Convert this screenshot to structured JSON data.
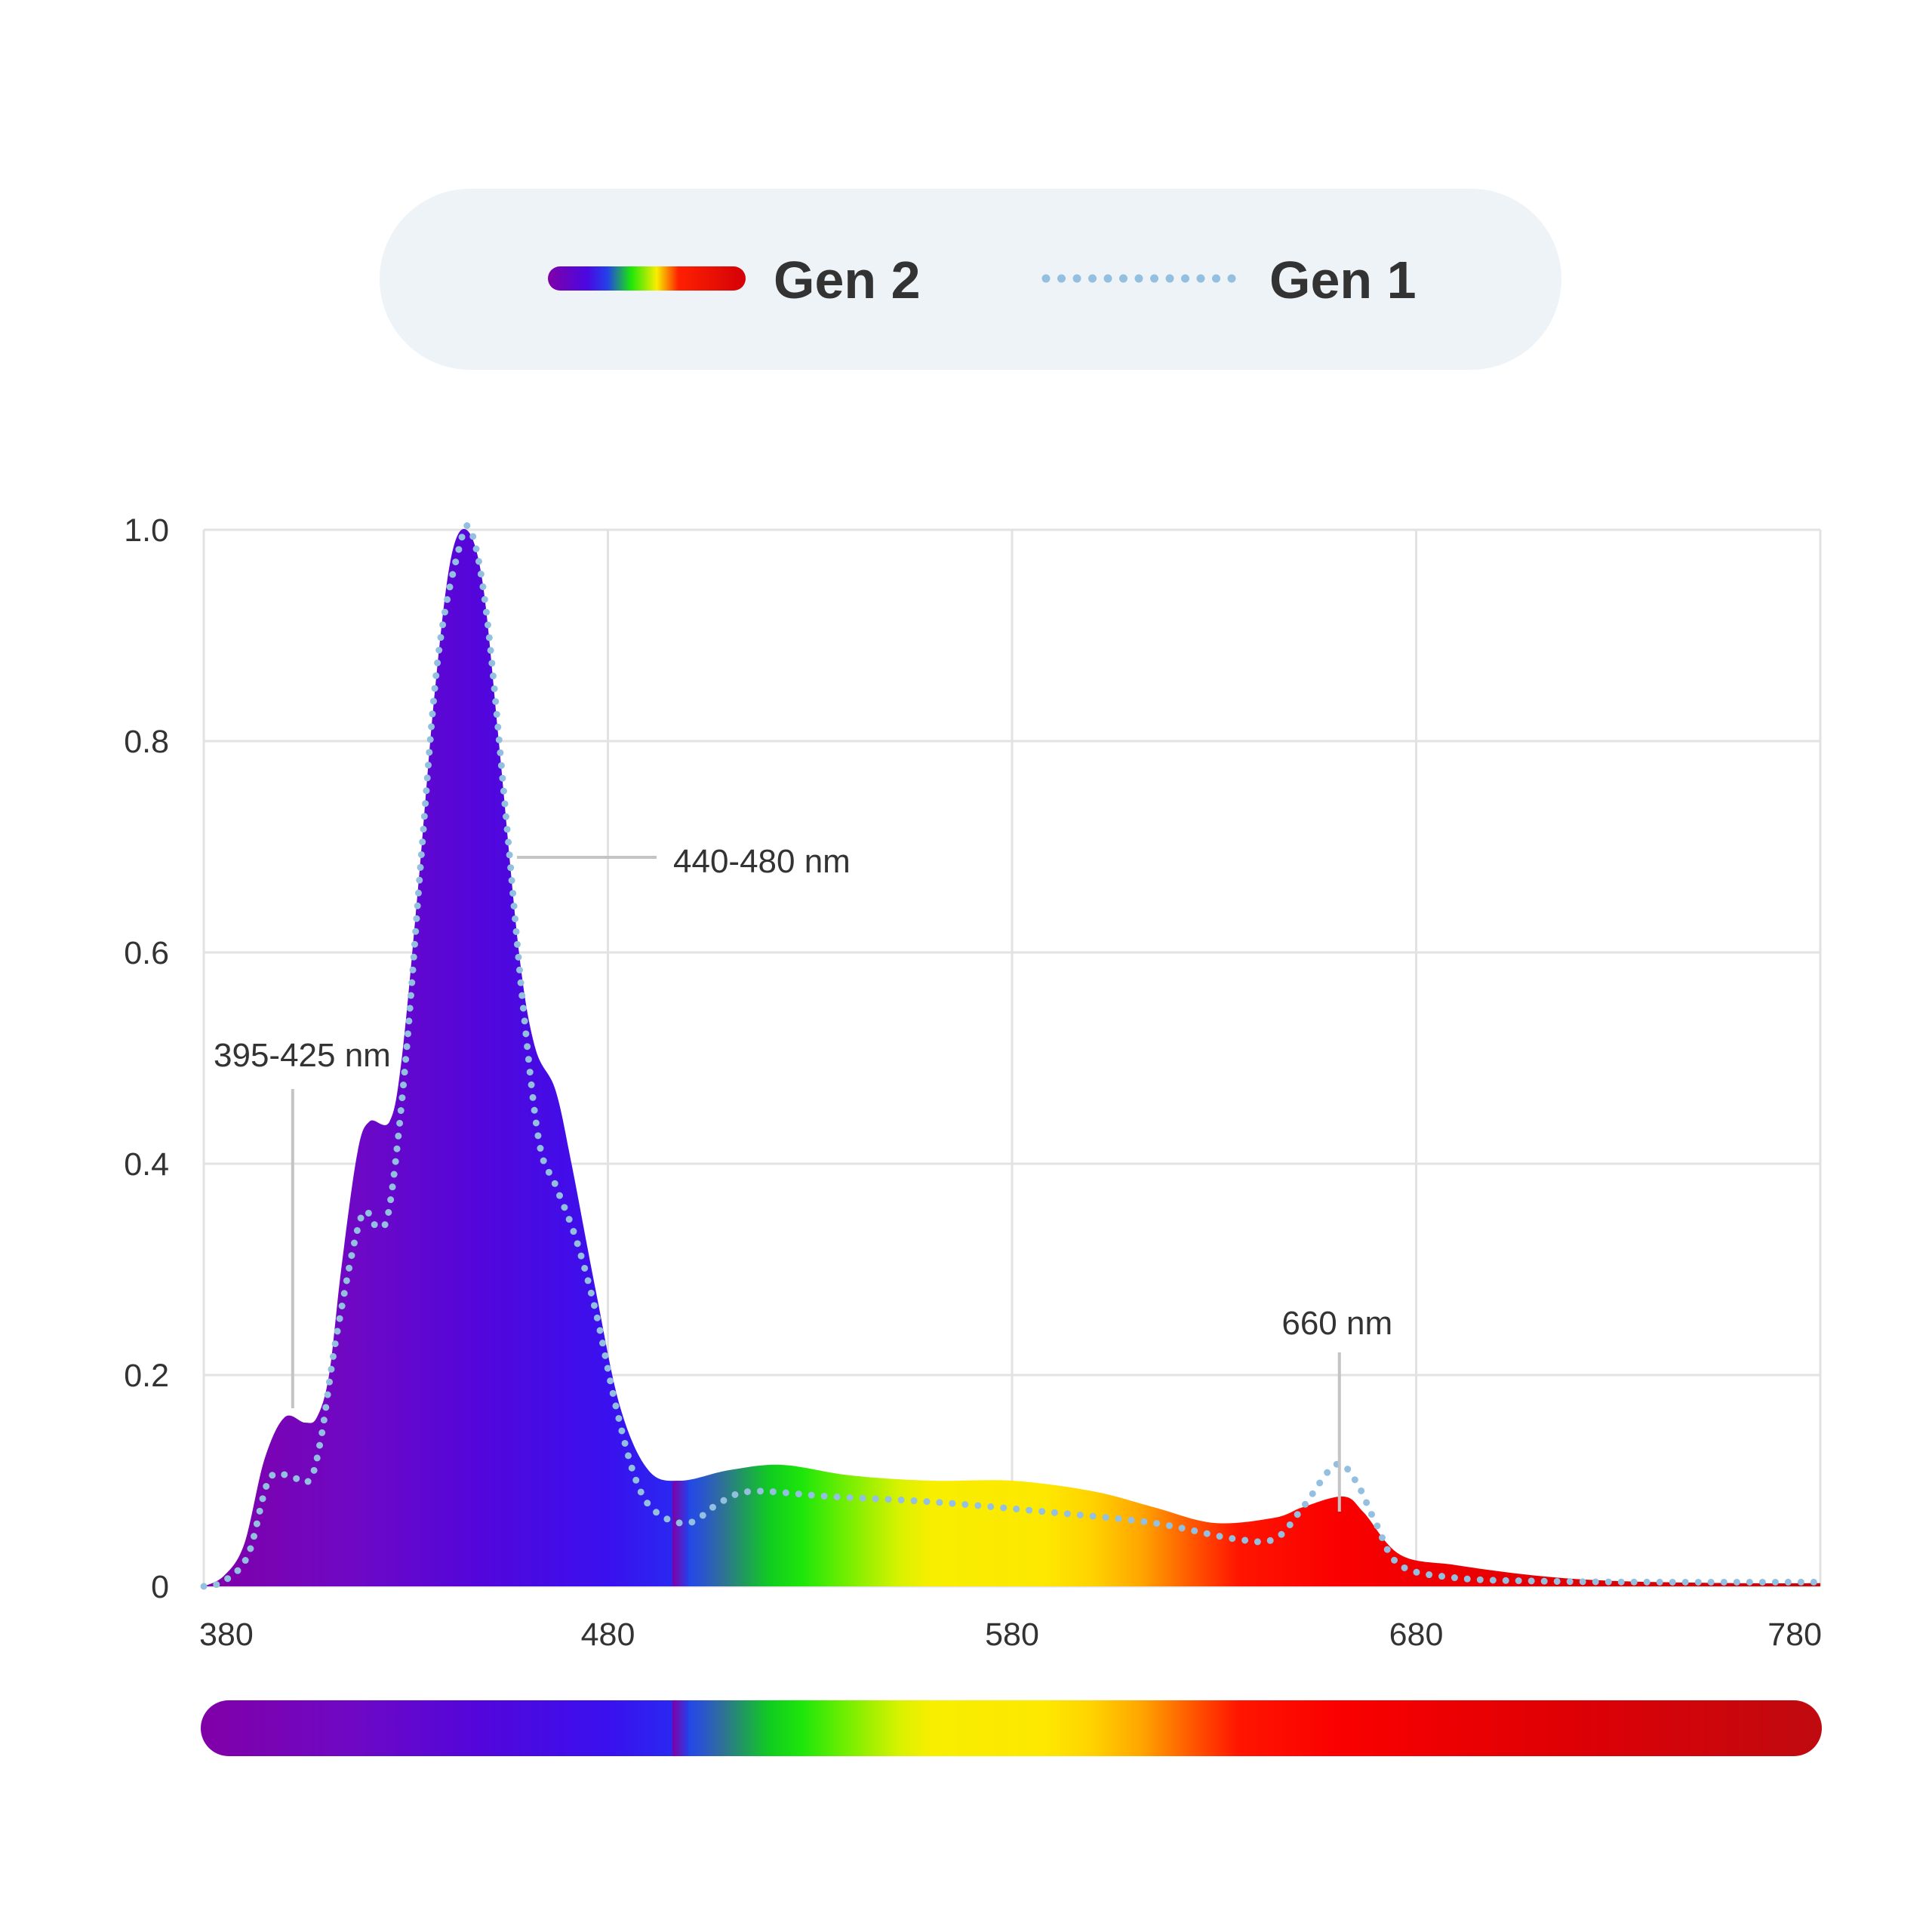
{
  "legend": {
    "items": [
      {
        "label": "Gen 2",
        "style": "spectrum-gradient"
      },
      {
        "label": "Gen 1",
        "style": "dotted",
        "color": "#93bfe0"
      }
    ],
    "background": "#eef3f7"
  },
  "chart_data": {
    "type": "area",
    "title": "",
    "xlabel": "",
    "ylabel": "",
    "xlim": [
      380,
      780
    ],
    "ylim": [
      0,
      1.0
    ],
    "x_ticks": [
      "380",
      "480",
      "580",
      "680",
      "780"
    ],
    "y_ticks": [
      "0",
      "0.2",
      "0.4",
      "0.6",
      "0.8",
      "1.0"
    ],
    "grid": true,
    "legend_position": "top-center",
    "series": [
      {
        "name": "Gen 2",
        "style": "filled-area-spectrum",
        "points": [
          [
            380,
            0
          ],
          [
            385,
            0.01
          ],
          [
            390,
            0.04
          ],
          [
            395,
            0.12
          ],
          [
            400,
            0.16
          ],
          [
            405,
            0.155
          ],
          [
            408,
            0.16
          ],
          [
            411,
            0.2
          ],
          [
            414,
            0.3
          ],
          [
            418,
            0.41
          ],
          [
            421,
            0.44
          ],
          [
            426,
            0.44
          ],
          [
            429,
            0.5
          ],
          [
            433,
            0.66
          ],
          [
            437,
            0.84
          ],
          [
            441,
            0.97
          ],
          [
            445,
            1.0
          ],
          [
            449,
            0.95
          ],
          [
            453,
            0.8
          ],
          [
            458,
            0.6
          ],
          [
            462,
            0.51
          ],
          [
            467,
            0.47
          ],
          [
            471,
            0.4
          ],
          [
            477,
            0.28
          ],
          [
            483,
            0.17
          ],
          [
            490,
            0.11
          ],
          [
            498,
            0.1
          ],
          [
            510,
            0.11
          ],
          [
            523,
            0.115
          ],
          [
            540,
            0.105
          ],
          [
            560,
            0.1
          ],
          [
            580,
            0.1
          ],
          [
            600,
            0.09
          ],
          [
            615,
            0.075
          ],
          [
            630,
            0.06
          ],
          [
            645,
            0.065
          ],
          [
            652,
            0.075
          ],
          [
            662,
            0.085
          ],
          [
            667,
            0.07
          ],
          [
            676,
            0.03
          ],
          [
            690,
            0.02
          ],
          [
            710,
            0.01
          ],
          [
            730,
            0.005
          ],
          [
            760,
            0.003
          ],
          [
            780,
            0.003
          ]
        ]
      },
      {
        "name": "Gen 1",
        "style": "dotted-line",
        "color": "#93bfe0",
        "points": [
          [
            380,
            0
          ],
          [
            385,
            0.005
          ],
          [
            391,
            0.03
          ],
          [
            396,
            0.1
          ],
          [
            401,
            0.105
          ],
          [
            406,
            0.1
          ],
          [
            409,
            0.14
          ],
          [
            413,
            0.24
          ],
          [
            419,
            0.35
          ],
          [
            423,
            0.34
          ],
          [
            426,
            0.36
          ],
          [
            430,
            0.5
          ],
          [
            434,
            0.7
          ],
          [
            438,
            0.88
          ],
          [
            443,
            0.98
          ],
          [
            446,
            1.0
          ],
          [
            450,
            0.92
          ],
          [
            455,
            0.72
          ],
          [
            459,
            0.55
          ],
          [
            463,
            0.42
          ],
          [
            467,
            0.38
          ],
          [
            472,
            0.33
          ],
          [
            477,
            0.26
          ],
          [
            482,
            0.17
          ],
          [
            487,
            0.1
          ],
          [
            492,
            0.07
          ],
          [
            500,
            0.06
          ],
          [
            508,
            0.08
          ],
          [
            516,
            0.09
          ],
          [
            535,
            0.085
          ],
          [
            560,
            0.08
          ],
          [
            590,
            0.07
          ],
          [
            615,
            0.06
          ],
          [
            635,
            0.045
          ],
          [
            645,
            0.045
          ],
          [
            652,
            0.075
          ],
          [
            660,
            0.115
          ],
          [
            665,
            0.1
          ],
          [
            670,
            0.06
          ],
          [
            676,
            0.02
          ],
          [
            690,
            0.008
          ],
          [
            710,
            0.005
          ],
          [
            740,
            0.004
          ],
          [
            780,
            0.004
          ]
        ]
      }
    ],
    "annotations": [
      {
        "label": "395-425 nm",
        "x": 402,
        "y": 0.16
      },
      {
        "label": "440-480 nm",
        "x": 456,
        "y": 0.69
      },
      {
        "label": "660 nm",
        "x": 661,
        "y": 0.085
      }
    ]
  }
}
